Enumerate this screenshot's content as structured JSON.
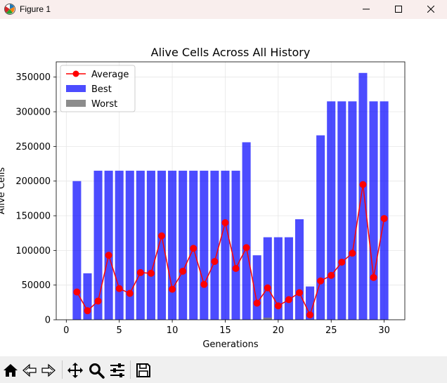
{
  "window": {
    "title": "Figure 1",
    "minimize_icon": "minimize-icon",
    "maximize_icon": "maximize-icon",
    "close_icon": "close-icon"
  },
  "toolbar": {
    "buttons": [
      "home-icon",
      "back-icon",
      "forward-icon",
      "pan-icon",
      "zoom-icon",
      "configure-subplots-icon",
      "save-icon"
    ]
  },
  "chart_data": {
    "type": "bar",
    "title": "Alive Cells Across All History",
    "xlabel": "Generations",
    "ylabel": "Alive Cells",
    "xlim": [
      -0.95,
      31.95
    ],
    "ylim": [
      0,
      372000
    ],
    "xticks": [
      0,
      5,
      10,
      15,
      20,
      25,
      30
    ],
    "yticks": [
      0,
      50000,
      100000,
      150000,
      200000,
      250000,
      300000,
      350000
    ],
    "grid": true,
    "legend_position": "top-left",
    "x": [
      1,
      2,
      3,
      4,
      5,
      6,
      7,
      8,
      9,
      10,
      11,
      12,
      13,
      14,
      15,
      16,
      17,
      18,
      19,
      20,
      21,
      22,
      23,
      24,
      25,
      26,
      27,
      28,
      29,
      30
    ],
    "series": [
      {
        "name": "Average",
        "kind": "line",
        "color": "#ff0000",
        "values": [
          40000,
          13000,
          27000,
          93000,
          45000,
          38000,
          68000,
          67000,
          121000,
          44000,
          70000,
          103000,
          51000,
          84000,
          140000,
          74000,
          104000,
          24000,
          46000,
          20000,
          29000,
          39000,
          7000,
          56000,
          64000,
          83000,
          96000,
          195000,
          61000,
          146000
        ]
      },
      {
        "name": "Best",
        "kind": "bar",
        "color": "#0000ff",
        "values": [
          200000,
          67000,
          215000,
          215000,
          215000,
          215000,
          215000,
          215000,
          215000,
          215000,
          215000,
          215000,
          215000,
          215000,
          215000,
          215000,
          256000,
          93000,
          119000,
          119000,
          119000,
          145000,
          48000,
          266000,
          315000,
          315000,
          315000,
          356000,
          315000,
          315000
        ]
      },
      {
        "name": "Worst",
        "kind": "bar",
        "color": "#808080",
        "values": [
          0,
          0,
          0,
          0,
          0,
          0,
          0,
          0,
          0,
          0,
          0,
          0,
          0,
          0,
          0,
          0,
          0,
          0,
          3000,
          0,
          0,
          0,
          0,
          0,
          0,
          0,
          0,
          0,
          0,
          0
        ]
      }
    ]
  }
}
